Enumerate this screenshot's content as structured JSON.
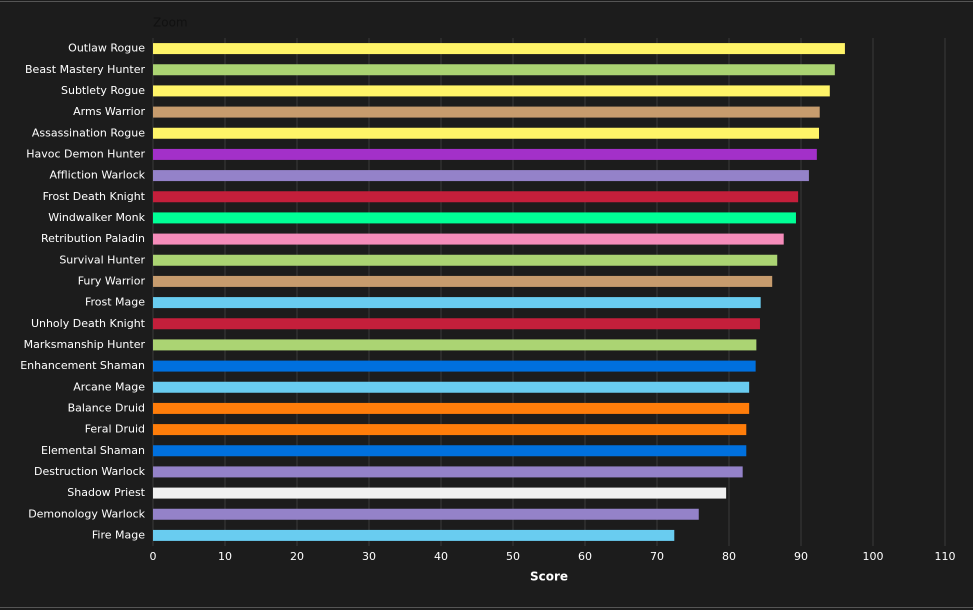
{
  "chart_data": {
    "type": "bar",
    "orientation": "horizontal",
    "zoom_label": "Zoom",
    "xlabel": "Score",
    "categories": [
      "Outlaw Rogue",
      "Beast Mastery Hunter",
      "Subtlety Rogue",
      "Arms Warrior",
      "Assassination Rogue",
      "Havoc Demon Hunter",
      "Affliction Warlock",
      "Frost Death Knight",
      "Windwalker Monk",
      "Retribution Paladin",
      "Survival Hunter",
      "Fury Warrior",
      "Frost Mage",
      "Unholy Death Knight",
      "Marksmanship Hunter",
      "Enhancement Shaman",
      "Arcane Mage",
      "Balance Druid",
      "Feral Druid",
      "Elemental Shaman",
      "Destruction Warlock",
      "Shadow Priest",
      "Demonology Warlock",
      "Fire Mage"
    ],
    "values": [
      96.1,
      94.7,
      94.0,
      92.6,
      92.5,
      92.2,
      91.1,
      89.6,
      89.3,
      87.6,
      86.7,
      86.0,
      84.4,
      84.3,
      83.8,
      83.7,
      82.8,
      82.8,
      82.4,
      82.4,
      81.9,
      79.6,
      75.8,
      72.4
    ],
    "colors": [
      "#fff468",
      "#abd473",
      "#fff468",
      "#c79c6e",
      "#fff468",
      "#a330c9",
      "#9482c9",
      "#c41f3b",
      "#00ff96",
      "#f58cba",
      "#abd473",
      "#c79c6e",
      "#69ccf0",
      "#c41f3b",
      "#abd473",
      "#0070de",
      "#69ccf0",
      "#ff7d0a",
      "#ff7d0a",
      "#0070de",
      "#9482c9",
      "#f0f0f0",
      "#9482c9",
      "#69ccf0"
    ],
    "xlim": [
      0,
      110
    ],
    "xticks": [
      0,
      10,
      20,
      30,
      40,
      50,
      60,
      70,
      80,
      90,
      100,
      110
    ],
    "grid": true
  }
}
